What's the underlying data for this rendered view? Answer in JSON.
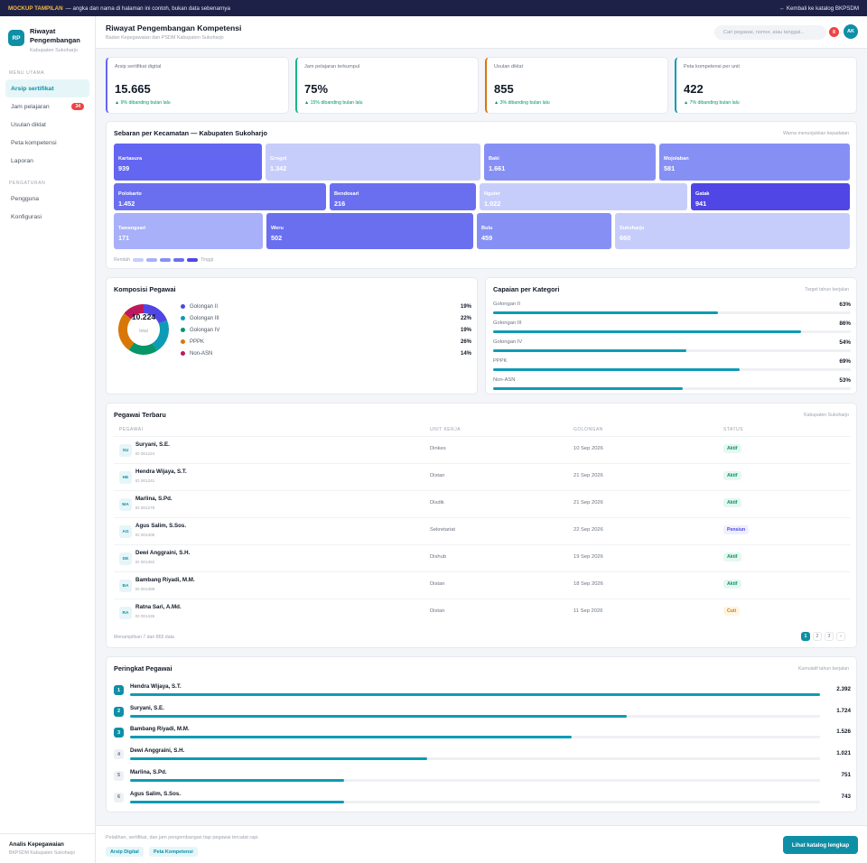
{
  "banner": {
    "tag": "MOCKUP TAMPILAN",
    "text": "— angka dan nama di halaman ini contoh, bukan data sebenarnya",
    "back": "← Kembali ke katalog BKPSDM"
  },
  "brand": {
    "logo": "RP",
    "title_line1": "Riwayat",
    "title_line2": "Pengembangan",
    "subtitle": "Kabupaten Sukoharjo"
  },
  "sidebar": {
    "section_main": "MENU UTAMA",
    "items": [
      {
        "label": "Arsip sertifikat",
        "active": true
      },
      {
        "label": "Jam pelajaran",
        "badge": "34"
      },
      {
        "label": "Usulan diklat"
      },
      {
        "label": "Peta kompetensi"
      },
      {
        "label": "Laporan"
      }
    ],
    "section_settings": "PENGATURAN",
    "settings": [
      {
        "label": "Pengguna"
      },
      {
        "label": "Konfigurasi"
      }
    ],
    "user": {
      "name": "Analis Kepegawaian",
      "org": "BKPSDM Kabupaten Sukoharjo"
    }
  },
  "header": {
    "title": "Riwayat Pengembangan Kompetensi",
    "subtitle": "Badan Kepegawaian dan PSDM Kabupaten Sukoharjo",
    "search_placeholder": "Cari pegawai, nomor, atau tanggal...",
    "notif": "8",
    "avatar": "AK"
  },
  "kpis": [
    {
      "label": "Arsip sertifikat digital",
      "value": "15.665",
      "delta": "▲ 9% dibanding bulan lalu",
      "color": "#6366f1"
    },
    {
      "label": "Jam pelajaran terkumpul",
      "value": "75%",
      "delta": "▲ 15% dibanding bulan lalu",
      "color": "#10b981"
    },
    {
      "label": "Usulan diklat",
      "value": "855",
      "delta": "▲ 3% dibanding bulan lalu",
      "color": "#d97706"
    },
    {
      "label": "Peta kompetensi per unit",
      "value": "422",
      "delta": "▲ 7% dibanding bulan lalu",
      "color": "#0e9bb5"
    }
  ],
  "treemap": {
    "title": "Sebaran per Kecamatan — Kabupaten Sukoharjo",
    "note": "Warna menunjukkan kepadatan",
    "tiles": [
      {
        "name": "Kartasura",
        "value": "939"
      },
      {
        "name": "Grogol",
        "value": "1.342"
      },
      {
        "name": "Baki",
        "value": "1.661"
      },
      {
        "name": "Mojolaban",
        "value": "581"
      },
      {
        "name": "Polokarto",
        "value": "1.452"
      },
      {
        "name": "Bendosari",
        "value": "216"
      },
      {
        "name": "Nguter",
        "value": "1.022"
      },
      {
        "name": "Gatak",
        "value": "941"
      },
      {
        "name": "Tawangsari",
        "value": "171"
      },
      {
        "name": "Weru",
        "value": "502"
      },
      {
        "name": "Bulu",
        "value": "459"
      },
      {
        "name": "Sukoharjo",
        "value": "660"
      }
    ],
    "scale_low": "Rendah",
    "scale_high": "Tinggi",
    "scale_colors": [
      "#c7cdfb",
      "#a7b0f8",
      "#8690f4",
      "#6a6ff0",
      "#4f46e5"
    ]
  },
  "composition": {
    "title": "Komposisi Pegawai",
    "total": "10.224",
    "total_label": "total",
    "items": [
      {
        "label": "Golongan II",
        "pct": "19%",
        "color": "#4f46e5"
      },
      {
        "label": "Golongan III",
        "pct": "22%",
        "color": "#0e9bb5"
      },
      {
        "label": "Golongan IV",
        "pct": "19%",
        "color": "#059669"
      },
      {
        "label": "PPPK",
        "pct": "26%",
        "color": "#d97706"
      },
      {
        "label": "Non-ASN",
        "pct": "14%",
        "color": "#be185d"
      }
    ]
  },
  "achievement": {
    "title": "Capaian per Kategori",
    "note": "Target tahun berjalan",
    "items": [
      {
        "label": "Golongan II",
        "pct": "63%",
        "value": 0.63
      },
      {
        "label": "Golongan III",
        "pct": "86%",
        "value": 0.86
      },
      {
        "label": "Golongan IV",
        "pct": "54%",
        "value": 0.54
      },
      {
        "label": "PPPK",
        "pct": "69%",
        "value": 0.69
      },
      {
        "label": "Non-ASN",
        "pct": "53%",
        "value": 0.53
      }
    ]
  },
  "employees": {
    "title": "Pegawai Terbaru",
    "note": "Kabupaten Sukoharjo",
    "columns": [
      "PEGAWAI",
      "UNIT KERJA",
      "GOLONGAN",
      "STATUS"
    ],
    "rows": [
      {
        "ini": "SU",
        "name": "Suryani, S.E.",
        "id": "ID 001224",
        "unit": "Dinkes",
        "date": "10 Sep 2026",
        "status": "Aktif"
      },
      {
        "ini": "HE",
        "name": "Hendra Wijaya, S.T.",
        "id": "ID 001241",
        "unit": "Distan",
        "date": "21 Sep 2026",
        "status": "Aktif"
      },
      {
        "ini": "MA",
        "name": "Marlina, S.Pd.",
        "id": "ID 001278",
        "unit": "Disdik",
        "date": "21 Sep 2026",
        "status": "Aktif"
      },
      {
        "ini": "AG",
        "name": "Agus Salim, S.Sos.",
        "id": "ID 001305",
        "unit": "Sekretariat",
        "date": "22 Sep 2026",
        "status": "Pensiun"
      },
      {
        "ini": "DE",
        "name": "Dewi Anggraini, S.H.",
        "id": "ID 001352",
        "unit": "Dishub",
        "date": "19 Sep 2026",
        "status": "Aktif"
      },
      {
        "ini": "BA",
        "name": "Bambang Riyadi, M.M.",
        "id": "ID 001389",
        "unit": "Distan",
        "date": "18 Sep 2026",
        "status": "Aktif"
      },
      {
        "ini": "RA",
        "name": "Ratna Sari, A.Md.",
        "id": "ID 001426",
        "unit": "Distan",
        "date": "11 Sep 2026",
        "status": "Cuti"
      }
    ],
    "summary": "Menampilkan 7 dari 865 data",
    "pages": [
      "1",
      "2",
      "3",
      "›"
    ]
  },
  "ranking": {
    "title": "Peringkat Pegawai",
    "note": "Kumulatif tahun berjalan",
    "rows": [
      {
        "rank": "1",
        "name": "Hendra Wijaya, S.T.",
        "value": "2.392",
        "ratio": 1.0
      },
      {
        "rank": "2",
        "name": "Suryani, S.E.",
        "value": "1.724",
        "ratio": 0.72
      },
      {
        "rank": "3",
        "name": "Bambang Riyadi, M.M.",
        "value": "1.526",
        "ratio": 0.64
      },
      {
        "rank": "4",
        "name": "Dewi Anggraini, S.H.",
        "value": "1.021",
        "ratio": 0.43
      },
      {
        "rank": "5",
        "name": "Marlina, S.Pd.",
        "value": "751",
        "ratio": 0.31
      },
      {
        "rank": "6",
        "name": "Agus Salim, S.Sos.",
        "value": "743",
        "ratio": 0.31
      }
    ]
  },
  "footer": {
    "text": "Pelatihan, sertifikat, dan jam pengembangan tiap pegawai tercatat rapi.",
    "chip1": "Arsip Digital",
    "chip2": "Peta Kompetensi",
    "button": "Lihat katalog lengkap"
  }
}
